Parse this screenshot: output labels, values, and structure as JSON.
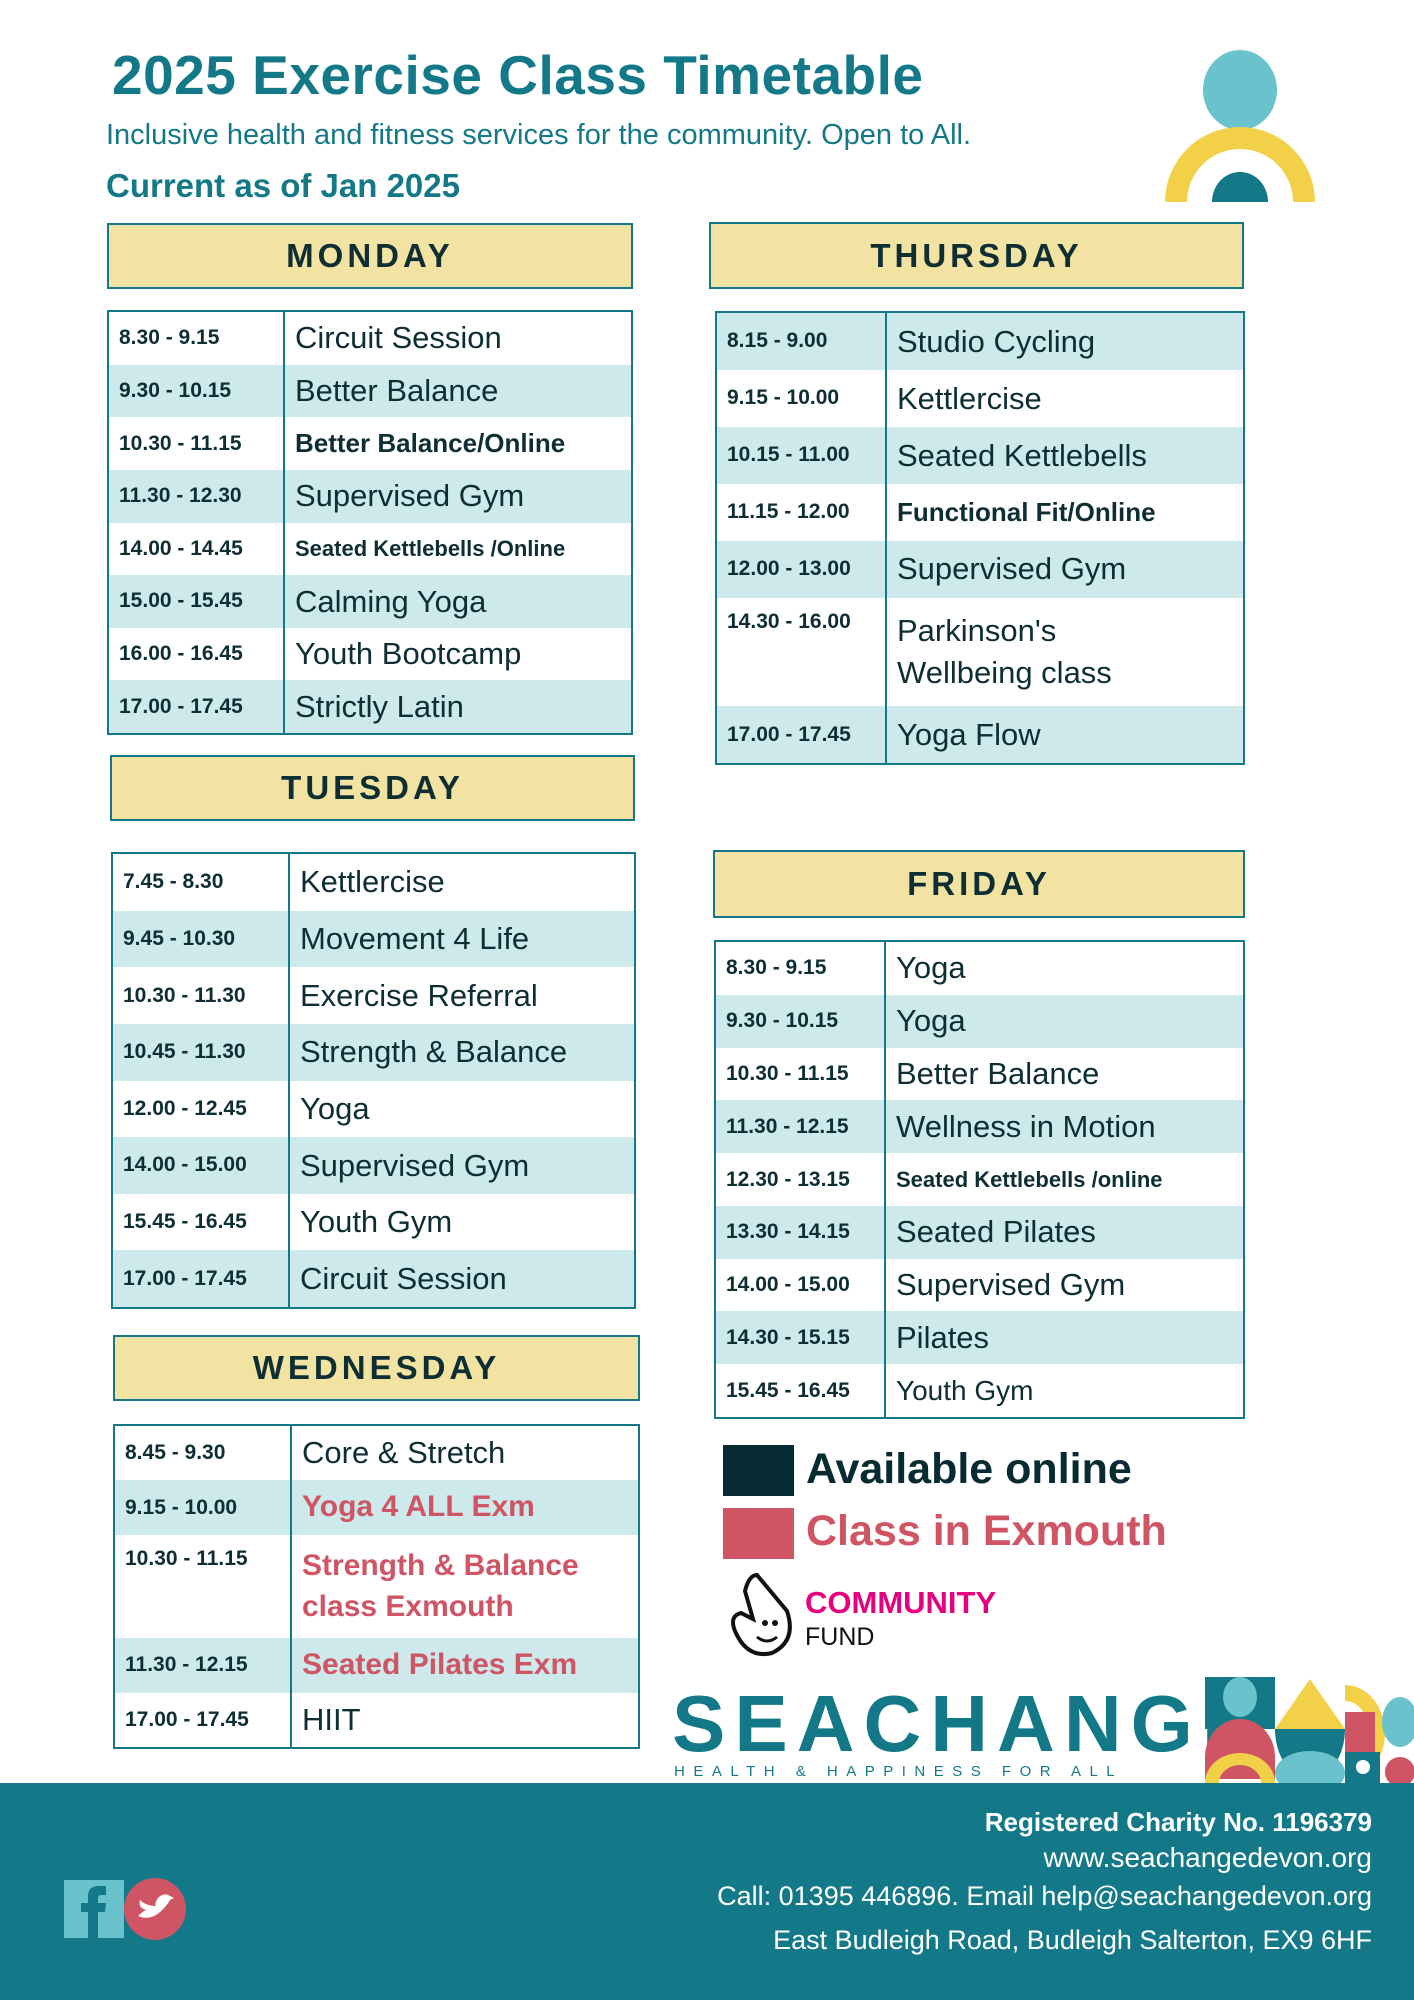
{
  "header": {
    "title": "2025 Exercise Class Timetable",
    "subtitle": "Inclusive health and fitness services for the community. Open to All.",
    "current": "Current as of Jan 2025"
  },
  "days": {
    "monday": {
      "label": "MONDAY",
      "rows": [
        {
          "time": "8.30 - 9.15",
          "class": "Circuit Session"
        },
        {
          "time": "9.30 - 10.15",
          "class": "Better Balance"
        },
        {
          "time": "10.30 - 11.15",
          "class": "Better Balance/Online",
          "type": "online"
        },
        {
          "time": "11.30 - 12.30",
          "class": "Supervised Gym"
        },
        {
          "time": "14.00 - 14.45",
          "class": "Seated Kettlebells /Online",
          "type": "online-small"
        },
        {
          "time": "15.00 - 15.45",
          "class": "Calming Yoga"
        },
        {
          "time": "16.00 - 16.45",
          "class": "Youth Bootcamp"
        },
        {
          "time": "17.00 - 17.45",
          "class": "Strictly Latin"
        }
      ]
    },
    "tuesday": {
      "label": "TUESDAY",
      "rows": [
        {
          "time": "7.45 - 8.30",
          "class": "Kettlercise"
        },
        {
          "time": "9.45 - 10.30",
          "class": "Movement 4 Life"
        },
        {
          "time": "10.30 - 11.30",
          "class": "Exercise Referral"
        },
        {
          "time": "10.45 - 11.30",
          "class": "Strength & Balance"
        },
        {
          "time": "12.00 - 12.45",
          "class": "Yoga"
        },
        {
          "time": "14.00 - 15.00",
          "class": "Supervised Gym"
        },
        {
          "time": "15.45 - 16.45",
          "class": "Youth Gym"
        },
        {
          "time": "17.00 - 17.45",
          "class": "Circuit Session"
        }
      ]
    },
    "wednesday": {
      "label": "WEDNESDAY",
      "rows": [
        {
          "time": "8.45 - 9.30",
          "class": "Core & Stretch"
        },
        {
          "time": "9.15 - 10.00",
          "class": "Yoga 4 ALL Exm",
          "type": "exmouth"
        },
        {
          "time": "10.30 - 11.15",
          "class": "Strength & Balance class Exmouth",
          "type": "exmouth",
          "tall": true
        },
        {
          "time": "11.30 - 12.15",
          "class": "Seated Pilates Exm",
          "type": "exmouth"
        },
        {
          "time": "17.00 - 17.45",
          "class": "HIIT"
        }
      ]
    },
    "thursday": {
      "label": "THURSDAY",
      "rows": [
        {
          "time": "8.15 - 9.00",
          "class": "Studio Cycling"
        },
        {
          "time": "9.15 - 10.00",
          "class": "Kettlercise"
        },
        {
          "time": "10.15 - 11.00",
          "class": "Seated Kettlebells"
        },
        {
          "time": "11.15 - 12.00",
          "class": "Functional Fit/Online",
          "type": "online"
        },
        {
          "time": "12.00 - 13.00",
          "class": "Supervised Gym"
        },
        {
          "time": "14.30 - 16.00",
          "class": "Parkinson's Wellbeing class",
          "tall": true
        },
        {
          "time": "17.00 - 17.45",
          "class": "Yoga Flow"
        }
      ]
    },
    "friday": {
      "label": "FRIDAY",
      "rows": [
        {
          "time": "8.30 - 9.15",
          "class": "Yoga"
        },
        {
          "time": "9.30 - 10.15",
          "class": "Yoga"
        },
        {
          "time": "10.30 - 11.15",
          "class": "Better Balance"
        },
        {
          "time": "11.30 - 12.15",
          "class": "Wellness in Motion"
        },
        {
          "time": "12.30 - 13.15",
          "class": "Seated Kettlebells /online",
          "type": "online-small"
        },
        {
          "time": "13.30 - 14.15",
          "class": "Seated Pilates"
        },
        {
          "time": "14.00 - 15.00",
          "class": "Supervised Gym"
        },
        {
          "time": "14.30 - 15.15",
          "class": "Pilates"
        },
        {
          "time": "15.45 - 16.45",
          "class": "Youth Gym",
          "type": "reduced"
        }
      ]
    }
  },
  "legend": {
    "online": {
      "label": "Available online",
      "color": "#062b33"
    },
    "exmouth": {
      "label": "Class in Exmouth",
      "color": "#cf5565"
    }
  },
  "logos": {
    "community_fund": {
      "line1": "COMMUNITY",
      "line2": "FUND"
    },
    "seachange": {
      "name": "SEACHANGE",
      "tagline": "HEALTH & HAPPINESS FOR ALL"
    }
  },
  "footer": {
    "charity": "Registered Charity No. 1196379",
    "website": "www.seachangedevon.org",
    "contact": "Call: 01395 446896. Email help@seachangedevon.org",
    "address": "East Budleigh Road, Budleigh Salterton, EX9 6HF",
    "social": [
      "facebook-icon",
      "twitter-icon"
    ]
  },
  "colors": {
    "teal": "#137887",
    "header_bg": "#f3e3a3",
    "row_alt": "#cde9ec",
    "light_blue": "#6ac3cc",
    "yellow": "#f2d048",
    "red": "#cf5565"
  }
}
